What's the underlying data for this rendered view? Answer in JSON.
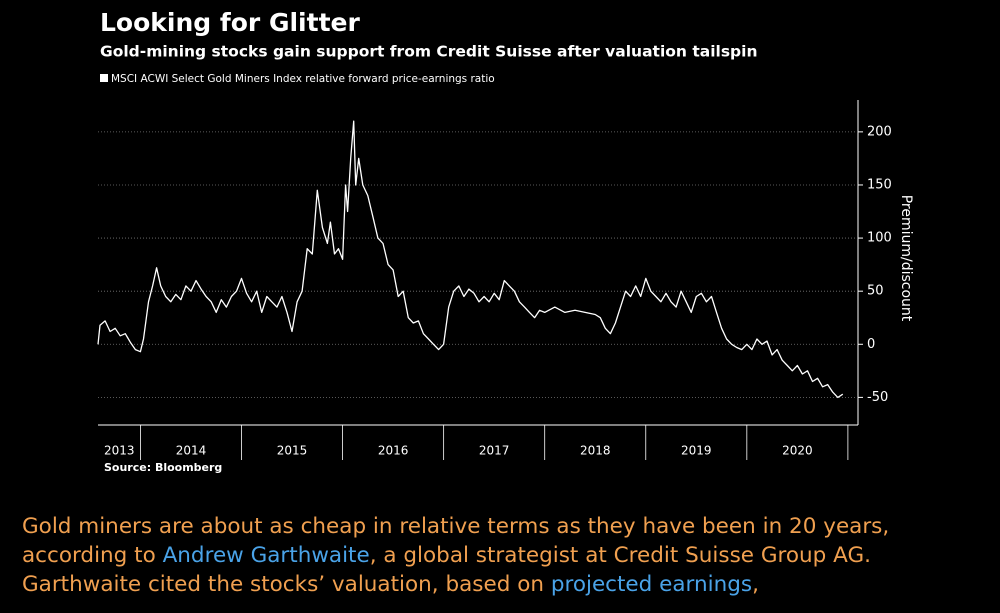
{
  "chart_data": {
    "type": "line",
    "title": "Looking for Glitter",
    "subtitle": "Gold-mining stocks gain support from Credit Suisse after valuation tailspin",
    "y_label": "Premium/discount",
    "source": "Source: Bloomberg",
    "x": [
      2013.58,
      2013.6,
      2013.65,
      2013.7,
      2013.75,
      2013.8,
      2013.85,
      2013.9,
      2013.95,
      2014.0,
      2014.03,
      2014.08,
      2014.12,
      2014.16,
      2014.2,
      2014.25,
      2014.3,
      2014.35,
      2014.4,
      2014.45,
      2014.5,
      2014.55,
      2014.6,
      2014.65,
      2014.7,
      2014.75,
      2014.8,
      2014.85,
      2014.9,
      2014.95,
      2015.0,
      2015.05,
      2015.1,
      2015.15,
      2015.2,
      2015.25,
      2015.3,
      2015.35,
      2015.4,
      2015.45,
      2015.5,
      2015.55,
      2015.6,
      2015.65,
      2015.7,
      2015.75,
      2015.8,
      2015.85,
      2015.88,
      2015.92,
      2015.96,
      2016.0,
      2016.03,
      2016.05,
      2016.08,
      2016.11,
      2016.13,
      2016.16,
      2016.2,
      2016.25,
      2016.3,
      2016.35,
      2016.4,
      2016.45,
      2016.5,
      2016.55,
      2016.6,
      2016.65,
      2016.7,
      2016.75,
      2016.8,
      2016.85,
      2016.9,
      2016.95,
      2017.0,
      2017.05,
      2017.1,
      2017.15,
      2017.2,
      2017.25,
      2017.3,
      2017.35,
      2017.4,
      2017.45,
      2017.5,
      2017.55,
      2017.6,
      2017.65,
      2017.7,
      2017.75,
      2017.8,
      2017.85,
      2017.9,
      2017.95,
      2018.0,
      2018.1,
      2018.2,
      2018.3,
      2018.4,
      2018.5,
      2018.55,
      2018.6,
      2018.65,
      2018.7,
      2018.75,
      2018.8,
      2018.85,
      2018.9,
      2018.95,
      2019.0,
      2019.05,
      2019.1,
      2019.15,
      2019.2,
      2019.25,
      2019.3,
      2019.35,
      2019.4,
      2019.45,
      2019.5,
      2019.55,
      2019.6,
      2019.65,
      2019.7,
      2019.75,
      2019.8,
      2019.85,
      2019.9,
      2019.95,
      2020.0,
      2020.05,
      2020.1,
      2020.15,
      2020.2,
      2020.25,
      2020.3,
      2020.35,
      2020.4,
      2020.45,
      2020.5,
      2020.55,
      2020.6,
      2020.65,
      2020.7,
      2020.75,
      2020.8,
      2020.85,
      2020.9,
      2020.95
    ],
    "series": [
      {
        "name": "MSCI ACWI Select Gold Miners Index relative forward price-earnings ratio",
        "color": "#ffffff",
        "values": [
          0,
          18,
          22,
          12,
          15,
          8,
          10,
          2,
          -5,
          -7,
          5,
          40,
          55,
          72,
          55,
          45,
          40,
          47,
          42,
          55,
          50,
          60,
          52,
          45,
          40,
          30,
          42,
          35,
          45,
          50,
          62,
          48,
          40,
          50,
          30,
          45,
          40,
          35,
          45,
          30,
          12,
          40,
          50,
          90,
          85,
          145,
          110,
          95,
          115,
          85,
          90,
          80,
          150,
          125,
          175,
          210,
          150,
          175,
          150,
          140,
          120,
          100,
          95,
          75,
          70,
          45,
          50,
          25,
          20,
          22,
          10,
          5,
          0,
          -5,
          0,
          35,
          50,
          55,
          45,
          52,
          48,
          40,
          45,
          40,
          48,
          42,
          60,
          55,
          50,
          40,
          35,
          30,
          25,
          32,
          30,
          35,
          30,
          32,
          30,
          28,
          25,
          15,
          10,
          20,
          35,
          50,
          45,
          55,
          45,
          62,
          50,
          45,
          40,
          48,
          40,
          35,
          50,
          40,
          30,
          45,
          48,
          40,
          45,
          30,
          15,
          5,
          0,
          -3,
          -5,
          0,
          -5,
          5,
          0,
          3,
          -10,
          -5,
          -15,
          -20,
          -25,
          -20,
          -28,
          -25,
          -35,
          -32,
          -40,
          -38,
          -45,
          -50,
          -47
        ]
      }
    ],
    "xlim": [
      2013.58,
      2021.1
    ],
    "xticks": [
      {
        "value": 2013,
        "label": "2013"
      },
      {
        "value": 2014,
        "label": "2014"
      },
      {
        "value": 2015,
        "label": "2015"
      },
      {
        "value": 2016,
        "label": "2016"
      },
      {
        "value": 2017,
        "label": "2017"
      },
      {
        "value": 2018,
        "label": "2018"
      },
      {
        "value": 2019,
        "label": "2019"
      },
      {
        "value": 2020,
        "label": "2020"
      }
    ],
    "ylim": [
      -76,
      230
    ],
    "yticks": [
      -50,
      0,
      50,
      100,
      150,
      200
    ],
    "grid": true
  },
  "article": {
    "segments": [
      {
        "text": "Gold miners are about as cheap in relative terms as they have been in 20 years, according to ",
        "link": false
      },
      {
        "text": "Andrew Garthwaite",
        "link": true
      },
      {
        "text": ", a global strategist at Credit Suisse Group AG. Garthwaite cited the stocks’ valuation, based on ",
        "link": false
      },
      {
        "text": "projected earnings",
        "link": true
      },
      {
        "text": ",",
        "link": false
      }
    ]
  }
}
